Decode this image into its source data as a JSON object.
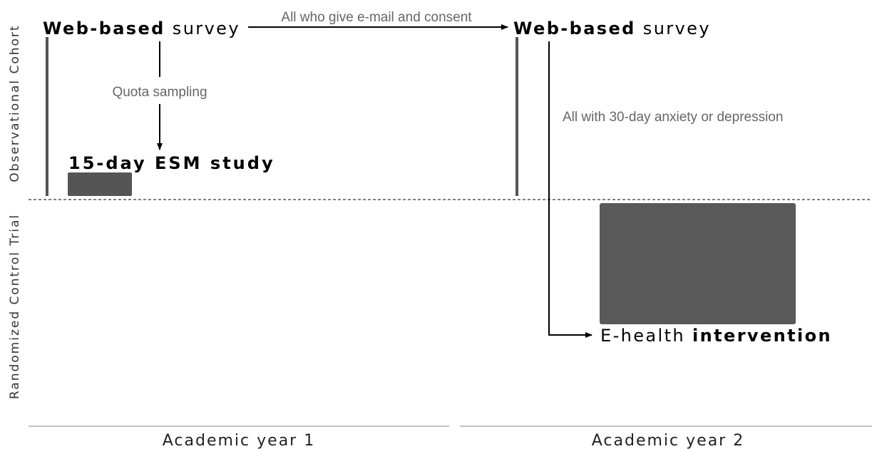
{
  "sections": {
    "top": "Observational Cohort",
    "bottom": "Randomized Control Trial"
  },
  "nodes": [
    {
      "bold": "Web-based",
      "regular": "survey"
    },
    {
      "bold": "Web-based",
      "regular": "survey"
    },
    {
      "bold": "15-day ESM study"
    },
    {
      "regular": "E-health",
      "bold": "intervention"
    }
  ],
  "edges": [
    {
      "label": "All who give e-mail and consent"
    },
    {
      "label": "Quota sampling"
    },
    {
      "label": "All with 30-day anxiety or depression"
    }
  ],
  "timeline": [
    "Academic year 1",
    "Academic year 2"
  ]
}
